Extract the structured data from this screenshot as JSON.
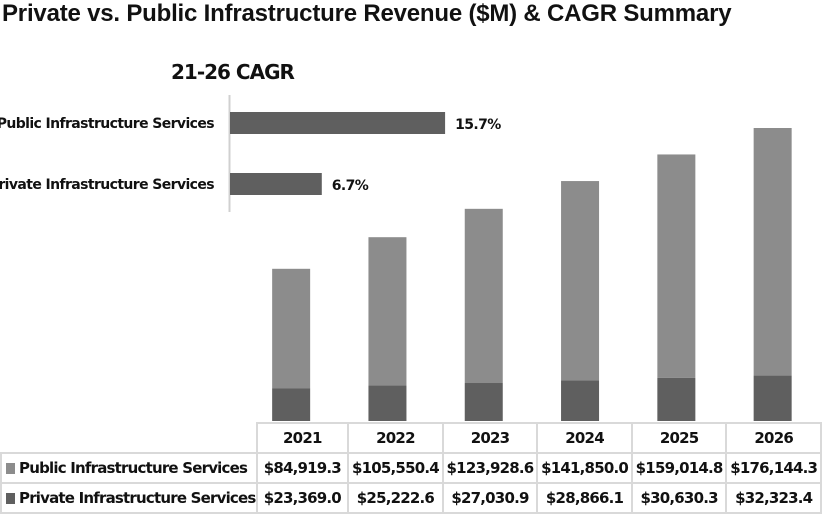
{
  "chart_data": [
    {
      "type": "bar",
      "orientation": "horizontal",
      "title": "21-26 CAGR",
      "categories": [
        "Public Infrastructure Services",
        "Private Infrastructure Services"
      ],
      "values": [
        15.7,
        6.7
      ],
      "labels": [
        "15.7%",
        "6.7%"
      ],
      "color": "#5f5f5f"
    },
    {
      "type": "bar",
      "stacked": true,
      "title": "Private vs. Public Infrastructure Revenue ($M) & CAGR Summary",
      "categories": [
        "2021",
        "2022",
        "2023",
        "2024",
        "2025",
        "2026"
      ],
      "series": [
        {
          "name": "Public Infrastructure Services",
          "color": "#8c8c8c",
          "values": [
            84919.3,
            105550.4,
            123928.6,
            141850.0,
            159014.8,
            176144.3
          ],
          "labels": [
            "$84,919.3",
            "$105,550.4",
            "$123,928.6",
            "$141,850.0",
            "$159,014.8",
            "$176,144.3"
          ]
        },
        {
          "name": "Private Infrastructure Services",
          "color": "#5f5f5f",
          "values": [
            23369.0,
            25222.6,
            27030.9,
            28866.1,
            30630.3,
            32323.4
          ],
          "labels": [
            "$23,369.0",
            "$25,222.6",
            "$27,030.9",
            "$28,866.1",
            "$30,630.3",
            "$32,323.4"
          ]
        }
      ],
      "data_table": true,
      "grid": false
    }
  ]
}
